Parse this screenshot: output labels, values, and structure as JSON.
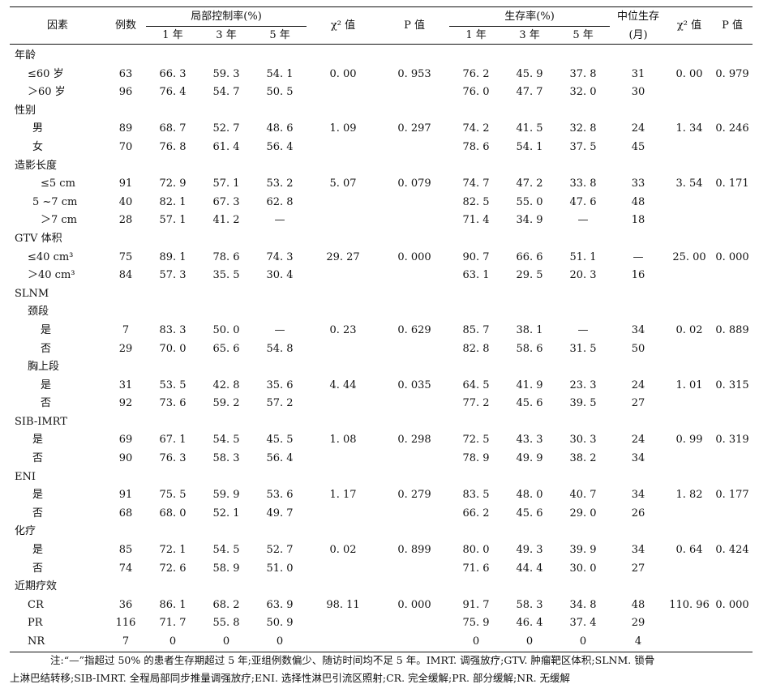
{
  "headers": {
    "factor": "因素",
    "n": "例数",
    "local_group": "局部控制率(%)",
    "chi": "χ² 值",
    "p": "P 值",
    "surv_group": "生存率(%)",
    "median_line1": "中位生存",
    "median_line2": "(月)",
    "chi2": "χ² 值",
    "p2": "P 值",
    "y1": "1 年",
    "y3": "3 年",
    "y5": "5 年"
  },
  "rows": [
    {
      "label": "年龄",
      "level": 0,
      "n": "",
      "l1": "",
      "l3": "",
      "l5": "",
      "chi": "",
      "p": "",
      "s1": "",
      "s3": "",
      "s5": "",
      "med": "",
      "chi2": "",
      "p2": ""
    },
    {
      "label": "≤60 岁",
      "level": 1,
      "n": "63",
      "l1": "66. 3",
      "l3": "59. 3",
      "l5": "54. 1",
      "chi": "0. 00",
      "p": "0. 953",
      "s1": "76. 2",
      "s3": "45. 9",
      "s5": "37. 8",
      "med": "31",
      "chi2": "0. 00",
      "p2": "0. 979"
    },
    {
      "label": "＞60 岁",
      "level": 1,
      "n": "96",
      "l1": "76. 4",
      "l3": "54. 7",
      "l5": "50. 5",
      "chi": "",
      "p": "",
      "s1": "76. 0",
      "s3": "47. 7",
      "s5": "32. 0",
      "med": "30",
      "chi2": "",
      "p2": ""
    },
    {
      "label": "性别",
      "level": 0,
      "n": "",
      "l1": "",
      "l3": "",
      "l5": "",
      "chi": "",
      "p": "",
      "s1": "",
      "s3": "",
      "s5": "",
      "med": "",
      "chi2": "",
      "p2": ""
    },
    {
      "label": "男",
      "level": 2,
      "n": "89",
      "l1": "68. 7",
      "l3": "52. 7",
      "l5": "48. 6",
      "chi": "1. 09",
      "p": "0. 297",
      "s1": "74. 2",
      "s3": "41. 5",
      "s5": "32. 8",
      "med": "24",
      "chi2": "1. 34",
      "p2": "0. 246"
    },
    {
      "label": "女",
      "level": 2,
      "n": "70",
      "l1": "76. 8",
      "l3": "61. 4",
      "l5": "56. 4",
      "chi": "",
      "p": "",
      "s1": "78. 6",
      "s3": "54. 1",
      "s5": "37. 5",
      "med": "45",
      "chi2": "",
      "p2": ""
    },
    {
      "label": "造影长度",
      "level": 0,
      "n": "",
      "l1": "",
      "l3": "",
      "l5": "",
      "chi": "",
      "p": "",
      "s1": "",
      "s3": "",
      "s5": "",
      "med": "",
      "chi2": "",
      "p2": ""
    },
    {
      "label": "≤5 cm",
      "level": 3,
      "n": "91",
      "l1": "72. 9",
      "l3": "57. 1",
      "l5": "53. 2",
      "chi": "5. 07",
      "p": "0. 079",
      "s1": "74. 7",
      "s3": "47. 2",
      "s5": "33. 8",
      "med": "33",
      "chi2": "3. 54",
      "p2": "0. 171"
    },
    {
      "label": "5 ~7 cm",
      "level": 2,
      "n": "40",
      "l1": "82. 1",
      "l3": "67. 3",
      "l5": "62. 8",
      "chi": "",
      "p": "",
      "s1": "82. 5",
      "s3": "55. 0",
      "s5": "47. 6",
      "med": "48",
      "chi2": "",
      "p2": ""
    },
    {
      "label": "＞7 cm",
      "level": 3,
      "n": "28",
      "l1": "57. 1",
      "l3": "41. 2",
      "l5": "—",
      "chi": "",
      "p": "",
      "s1": "71. 4",
      "s3": "34. 9",
      "s5": "—",
      "med": "18",
      "chi2": "",
      "p2": ""
    },
    {
      "label": "GTV 体积",
      "level": 0,
      "n": "",
      "l1": "",
      "l3": "",
      "l5": "",
      "chi": "",
      "p": "",
      "s1": "",
      "s3": "",
      "s5": "",
      "med": "",
      "chi2": "",
      "p2": ""
    },
    {
      "label": "≤40 cm³",
      "level": 1,
      "n": "75",
      "l1": "89. 1",
      "l3": "78. 6",
      "l5": "74. 3",
      "chi": "29. 27",
      "p": "0. 000",
      "s1": "90. 7",
      "s3": "66. 6",
      "s5": "51. 1",
      "med": "—",
      "chi2": "25. 00",
      "p2": "0. 000"
    },
    {
      "label": "＞40 cm³",
      "level": 1,
      "n": "84",
      "l1": "57. 3",
      "l3": "35. 5",
      "l5": "30. 4",
      "chi": "",
      "p": "",
      "s1": "63. 1",
      "s3": "29. 5",
      "s5": "20. 3",
      "med": "16",
      "chi2": "",
      "p2": ""
    },
    {
      "label": "SLNM",
      "level": 0,
      "n": "",
      "l1": "",
      "l3": "",
      "l5": "",
      "chi": "",
      "p": "",
      "s1": "",
      "s3": "",
      "s5": "",
      "med": "",
      "chi2": "",
      "p2": ""
    },
    {
      "label": "颈段",
      "level": 1,
      "n": "",
      "l1": "",
      "l3": "",
      "l5": "",
      "chi": "",
      "p": "",
      "s1": "",
      "s3": "",
      "s5": "",
      "med": "",
      "chi2": "",
      "p2": ""
    },
    {
      "label": "是",
      "level": 3,
      "n": "7",
      "l1": "83. 3",
      "l3": "50. 0",
      "l5": "—",
      "chi": "0. 23",
      "p": "0. 629",
      "s1": "85. 7",
      "s3": "38. 1",
      "s5": "—",
      "med": "34",
      "chi2": "0. 02",
      "p2": "0. 889"
    },
    {
      "label": "否",
      "level": 3,
      "n": "29",
      "l1": "70. 0",
      "l3": "65. 6",
      "l5": "54. 8",
      "chi": "",
      "p": "",
      "s1": "82. 8",
      "s3": "58. 6",
      "s5": "31. 5",
      "med": "50",
      "chi2": "",
      "p2": ""
    },
    {
      "label": "胸上段",
      "level": 1,
      "n": "",
      "l1": "",
      "l3": "",
      "l5": "",
      "chi": "",
      "p": "",
      "s1": "",
      "s3": "",
      "s5": "",
      "med": "",
      "chi2": "",
      "p2": ""
    },
    {
      "label": "是",
      "level": 3,
      "n": "31",
      "l1": "53. 5",
      "l3": "42. 8",
      "l5": "35. 6",
      "chi": "4. 44",
      "p": "0. 035",
      "s1": "64. 5",
      "s3": "41. 9",
      "s5": "23. 3",
      "med": "24",
      "chi2": "1. 01",
      "p2": "0. 315"
    },
    {
      "label": "否",
      "level": 3,
      "n": "92",
      "l1": "73. 6",
      "l3": "59. 2",
      "l5": "57. 2",
      "chi": "",
      "p": "",
      "s1": "77. 2",
      "s3": "45. 6",
      "s5": "39. 5",
      "med": "27",
      "chi2": "",
      "p2": ""
    },
    {
      "label": "SIB-IMRT",
      "level": 0,
      "n": "",
      "l1": "",
      "l3": "",
      "l5": "",
      "chi": "",
      "p": "",
      "s1": "",
      "s3": "",
      "s5": "",
      "med": "",
      "chi2": "",
      "p2": ""
    },
    {
      "label": "是",
      "level": 2,
      "n": "69",
      "l1": "67. 1",
      "l3": "54. 5",
      "l5": "45. 5",
      "chi": "1. 08",
      "p": "0. 298",
      "s1": "72. 5",
      "s3": "43. 3",
      "s5": "30. 3",
      "med": "24",
      "chi2": "0. 99",
      "p2": "0. 319"
    },
    {
      "label": "否",
      "level": 2,
      "n": "90",
      "l1": "76. 3",
      "l3": "58. 3",
      "l5": "56. 4",
      "chi": "",
      "p": "",
      "s1": "78. 9",
      "s3": "49. 9",
      "s5": "38. 2",
      "med": "34",
      "chi2": "",
      "p2": ""
    },
    {
      "label": "ENI",
      "level": 0,
      "n": "",
      "l1": "",
      "l3": "",
      "l5": "",
      "chi": "",
      "p": "",
      "s1": "",
      "s3": "",
      "s5": "",
      "med": "",
      "chi2": "",
      "p2": ""
    },
    {
      "label": "是",
      "level": 2,
      "n": "91",
      "l1": "75. 5",
      "l3": "59. 9",
      "l5": "53. 6",
      "chi": "1. 17",
      "p": "0. 279",
      "s1": "83. 5",
      "s3": "48. 0",
      "s5": "40. 7",
      "med": "34",
      "chi2": "1. 82",
      "p2": "0. 177"
    },
    {
      "label": "否",
      "level": 2,
      "n": "68",
      "l1": "68. 0",
      "l3": "52. 1",
      "l5": "49. 7",
      "chi": "",
      "p": "",
      "s1": "66. 2",
      "s3": "45. 6",
      "s5": "29. 0",
      "med": "26",
      "chi2": "",
      "p2": ""
    },
    {
      "label": "化疗",
      "level": 0,
      "n": "",
      "l1": "",
      "l3": "",
      "l5": "",
      "chi": "",
      "p": "",
      "s1": "",
      "s3": "",
      "s5": "",
      "med": "",
      "chi2": "",
      "p2": ""
    },
    {
      "label": "是",
      "level": 2,
      "n": "85",
      "l1": "72. 1",
      "l3": "54. 5",
      "l5": "52. 7",
      "chi": "0. 02",
      "p": "0. 899",
      "s1": "80. 0",
      "s3": "49. 3",
      "s5": "39. 9",
      "med": "34",
      "chi2": "0. 64",
      "p2": "0. 424"
    },
    {
      "label": "否",
      "level": 2,
      "n": "74",
      "l1": "72. 6",
      "l3": "58. 9",
      "l5": "51. 0",
      "chi": "",
      "p": "",
      "s1": "71. 6",
      "s3": "44. 4",
      "s5": "30. 0",
      "med": "27",
      "chi2": "",
      "p2": ""
    },
    {
      "label": "近期疗效",
      "level": 0,
      "n": "",
      "l1": "",
      "l3": "",
      "l5": "",
      "chi": "",
      "p": "",
      "s1": "",
      "s3": "",
      "s5": "",
      "med": "",
      "chi2": "",
      "p2": ""
    },
    {
      "label": "CR",
      "level": 1,
      "n": "36",
      "l1": "86. 1",
      "l3": "68. 2",
      "l5": "63. 9",
      "chi": "98. 11",
      "p": "0. 000",
      "s1": "91. 7",
      "s3": "58. 3",
      "s5": "34. 8",
      "med": "48",
      "chi2": "110. 96",
      "p2": "0. 000"
    },
    {
      "label": "PR",
      "level": 1,
      "n": "116",
      "l1": "71. 7",
      "l3": "55. 8",
      "l5": "50. 9",
      "chi": "",
      "p": "",
      "s1": "75. 9",
      "s3": "46. 4",
      "s5": "37. 4",
      "med": "29",
      "chi2": "",
      "p2": ""
    },
    {
      "label": "NR",
      "level": 1,
      "n": "7",
      "l1": "0",
      "l3": "0",
      "l5": "0",
      "chi": "",
      "p": "",
      "s1": "0",
      "s3": "0",
      "s5": "0",
      "med": "4",
      "chi2": "",
      "p2": ""
    }
  ],
  "note": {
    "line1": "注:“—”指超过 50% 的患者生存期超过 5 年;亚组例数偏少、随访时间均不足 5 年。IMRT. 调强放疗;GTV. 肿瘤靶区体积;SLNM. 锁骨",
    "line2": "上淋巴结转移;SIB-IMRT. 全程局部同步推量调强放疗;ENI. 选择性淋巴引流区照射;CR. 完全缓解;PR. 部分缓解;NR. 无缓解"
  }
}
